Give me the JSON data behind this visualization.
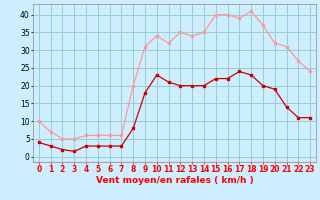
{
  "x": [
    0,
    1,
    2,
    3,
    4,
    5,
    6,
    7,
    8,
    9,
    10,
    11,
    12,
    13,
    14,
    15,
    16,
    17,
    18,
    19,
    20,
    21,
    22,
    23
  ],
  "avg_wind": [
    4,
    3,
    2,
    1.5,
    3,
    3,
    3,
    3,
    8,
    18,
    23,
    21,
    20,
    20,
    20,
    22,
    22,
    24,
    23,
    20,
    19,
    14,
    11,
    11
  ],
  "gusts": [
    10,
    7,
    5,
    5,
    6,
    6,
    6,
    6,
    20,
    31,
    34,
    32,
    35,
    34,
    35,
    40,
    40,
    39,
    41,
    37,
    32,
    31,
    27,
    24
  ],
  "avg_color": "#cc0000",
  "gust_color": "#ff9999",
  "bg_color": "#cceeff",
  "grid_color": "#99cccc",
  "xlabel": "Vent moyen/en rafales ( km/h )",
  "yticks": [
    0,
    5,
    10,
    15,
    20,
    25,
    30,
    35,
    40
  ],
  "xticks": [
    0,
    1,
    2,
    3,
    4,
    5,
    6,
    7,
    8,
    9,
    10,
    11,
    12,
    13,
    14,
    15,
    16,
    17,
    18,
    19,
    20,
    21,
    22,
    23
  ],
  "ylim": [
    -1.5,
    43
  ],
  "xlim": [
    -0.5,
    23.5
  ],
  "axis_fontsize": 6.5,
  "tick_fontsize": 5.5
}
